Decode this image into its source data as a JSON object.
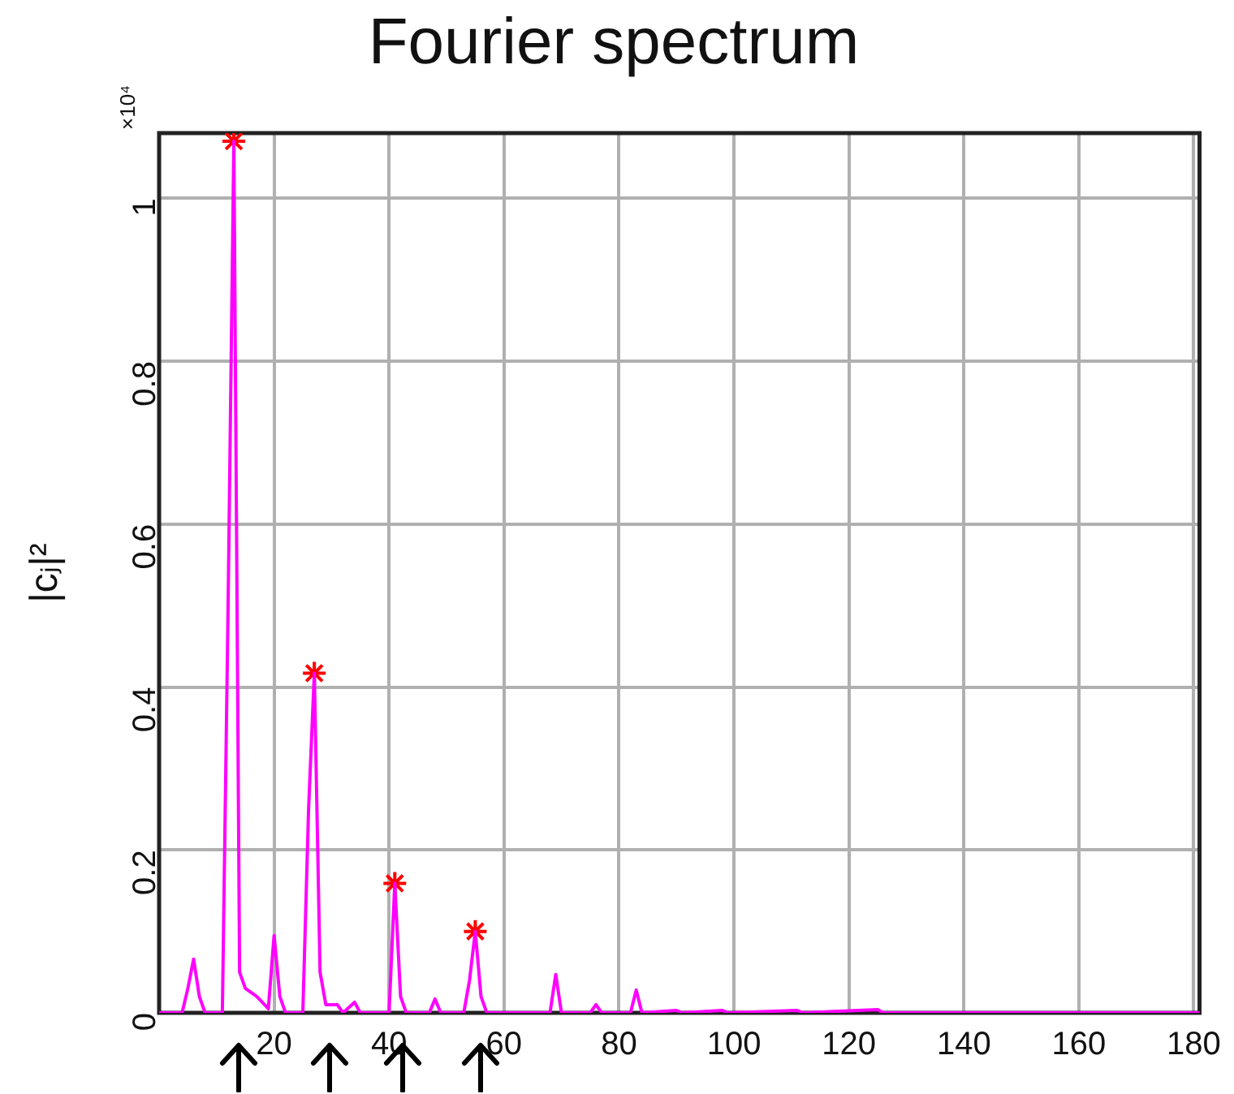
{
  "chart_data": {
    "type": "line",
    "title": "Fourier spectrum",
    "ylabel": "|cⱼ|²",
    "annotations": [
      "×10⁴"
    ],
    "xlim": [
      0,
      181
    ],
    "xticks": [
      20,
      40,
      60,
      80,
      100,
      120,
      140,
      160,
      180
    ],
    "ylim": [
      0,
      1.08
    ],
    "yticks": [
      0,
      0.2,
      0.4,
      0.6,
      0.8,
      1
    ],
    "grid": true,
    "legend": false,
    "series": [
      {
        "color": "#ff00ff",
        "marker": "none",
        "line_style": "solid",
        "x": [
          0,
          4,
          5,
          6,
          7,
          8,
          11,
          12,
          13,
          14,
          15,
          17,
          19,
          20,
          21,
          22,
          25,
          26,
          27,
          28,
          29,
          31,
          32,
          34,
          35,
          40,
          41,
          42,
          43,
          47,
          48,
          49,
          53,
          54,
          55,
          56,
          57,
          68,
          69,
          70,
          75,
          76,
          77,
          82,
          83,
          84,
          90,
          91,
          98,
          99,
          111,
          112,
          125,
          126,
          181
        ],
        "values": [
          0,
          0,
          0.03,
          0.066,
          0.02,
          0,
          0,
          0.5,
          1.07,
          0.05,
          0.03,
          0.02,
          0.005,
          0.095,
          0.02,
          0,
          0,
          0.25,
          0.417,
          0.05,
          0.01,
          0.01,
          0,
          0.013,
          0,
          0,
          0.159,
          0.02,
          0,
          0,
          0.017,
          0,
          0,
          0.04,
          0.1,
          0.02,
          0,
          0,
          0.047,
          0,
          0,
          0.01,
          0,
          0,
          0.028,
          0,
          0.003,
          0,
          0.003,
          0,
          0.003,
          0,
          0.004,
          0,
          0
        ]
      },
      {
        "type": "scatter",
        "color": "#ff0000",
        "marker": "cross",
        "x": [
          13,
          27,
          41,
          55
        ],
        "values": [
          1.07,
          0.417,
          0.159,
          0.1
        ]
      }
    ]
  }
}
